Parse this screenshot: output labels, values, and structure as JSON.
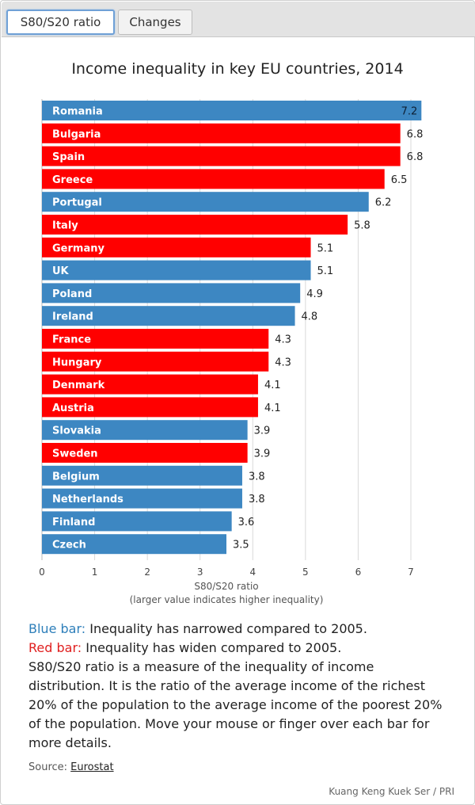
{
  "tabs": [
    {
      "label": "S80/S20 ratio",
      "active": true
    },
    {
      "label": "Changes",
      "active": false
    }
  ],
  "chart_data": {
    "type": "bar",
    "orientation": "horizontal",
    "title": "Income inequality in key EU countries, 2014",
    "xlabel": "S80/S20 ratio",
    "xlabel_sub": "(larger value indicates higher inequality)",
    "xlim": [
      0,
      7
    ],
    "ticks": [
      0,
      1,
      2,
      3,
      4,
      5,
      6,
      7
    ],
    "grid": true,
    "colors": {
      "narrowed": "#3d87c2",
      "widened": "#ff0000"
    },
    "categories": [
      "Romania",
      "Bulgaria",
      "Spain",
      "Greece",
      "Portugal",
      "Italy",
      "Germany",
      "UK",
      "Poland",
      "Ireland",
      "France",
      "Hungary",
      "Denmark",
      "Austria",
      "Slovakia",
      "Sweden",
      "Belgium",
      "Netherlands",
      "Finland",
      "Czech"
    ],
    "values": [
      7.2,
      6.8,
      6.8,
      6.5,
      6.2,
      5.8,
      5.1,
      5.1,
      4.9,
      4.8,
      4.3,
      4.3,
      4.1,
      4.1,
      3.9,
      3.9,
      3.8,
      3.8,
      3.6,
      3.5
    ],
    "change": [
      "narrowed",
      "widened",
      "widened",
      "widened",
      "narrowed",
      "widened",
      "widened",
      "narrowed",
      "narrowed",
      "narrowed",
      "widened",
      "widened",
      "widened",
      "widened",
      "narrowed",
      "widened",
      "narrowed",
      "narrowed",
      "narrowed",
      "narrowed"
    ]
  },
  "notes": {
    "blue_label": "Blue bar:",
    "blue_text": " Inequality has narrowed compared to 2005.",
    "red_label": "Red bar:",
    "red_text": " Inequality has widen compared to 2005.",
    "description": "S80/S20 ratio is a measure of the inequality of income distribution. It is the ratio of the average income of the richest 20% of the population to the average income of the poorest 20% of the population. Move your mouse or finger over each bar for more details."
  },
  "source": {
    "label": "Source: ",
    "link_text": "Eurostat"
  },
  "credit": "Kuang Keng Kuek Ser / PRI"
}
